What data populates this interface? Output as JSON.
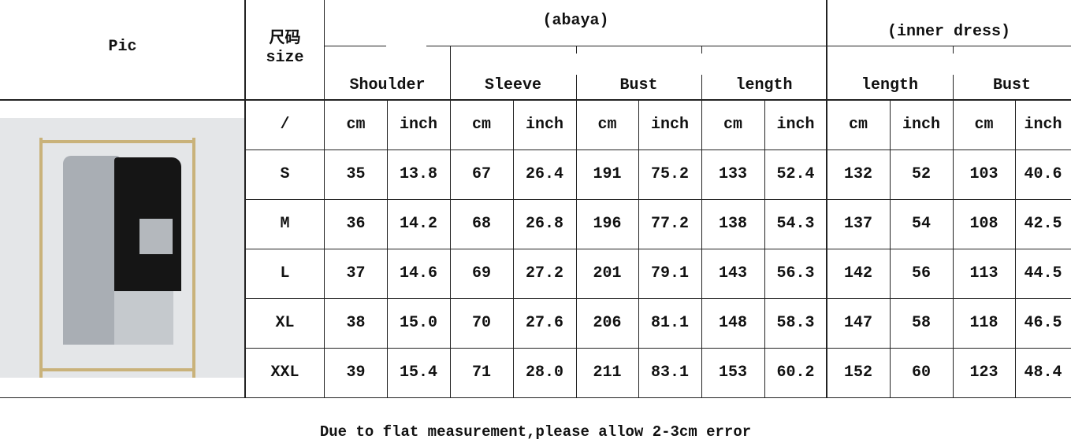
{
  "header": {
    "pic": "Pic",
    "size_cn": "尺码",
    "size_en": "size",
    "abaya": "(abaya)",
    "inner_dress": "(inner dress)",
    "measures": [
      "Shoulder",
      "Sleeve",
      "Bust",
      "length",
      "length",
      "Bust"
    ],
    "unit_row_label": "/",
    "units": [
      "cm",
      "inch"
    ]
  },
  "rows": [
    {
      "size": "S",
      "values": [
        "35",
        "13.8",
        "67",
        "26.4",
        "191",
        "75.2",
        "133",
        "52.4",
        "132",
        "52",
        "103",
        "40.6"
      ]
    },
    {
      "size": "M",
      "values": [
        "36",
        "14.2",
        "68",
        "26.8",
        "196",
        "77.2",
        "138",
        "54.3",
        "137",
        "54",
        "108",
        "42.5"
      ]
    },
    {
      "size": "L",
      "values": [
        "37",
        "14.6",
        "69",
        "27.2",
        "201",
        "79.1",
        "143",
        "56.3",
        "142",
        "56",
        "113",
        "44.5"
      ]
    },
    {
      "size": "XL",
      "values": [
        "38",
        "15.0",
        "70",
        "27.6",
        "206",
        "81.1",
        "148",
        "58.3",
        "147",
        "58",
        "118",
        "46.5"
      ]
    },
    {
      "size": "XXL",
      "values": [
        "39",
        "15.4",
        "71",
        "28.0",
        "211",
        "83.1",
        "153",
        "60.2",
        "152",
        "60",
        "123",
        "48.4"
      ]
    }
  ],
  "footer": "Due to flat measurement,please allow 2-3cm error",
  "colors": {
    "abaya_black": "#151515",
    "dress_grey": "#a9aeb4",
    "rack_gold": "#c9b27a"
  }
}
